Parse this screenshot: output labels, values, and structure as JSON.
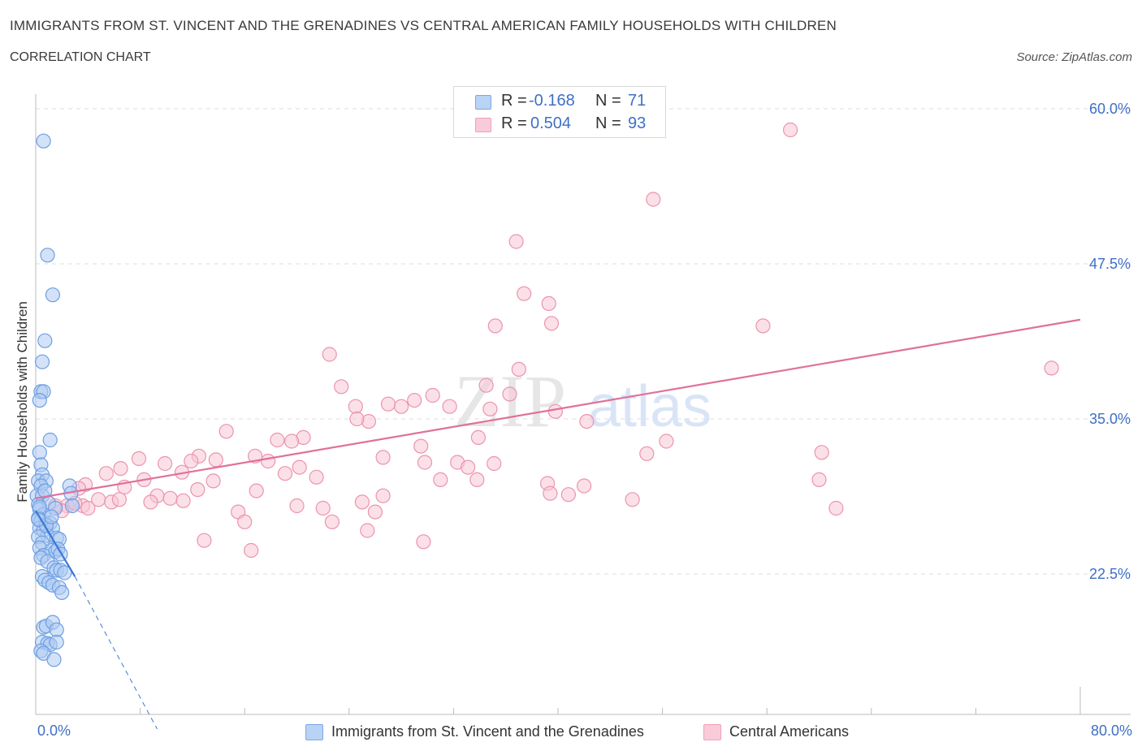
{
  "header": {
    "title": "IMMIGRANTS FROM ST. VINCENT AND THE GRENADINES VS CENTRAL AMERICAN FAMILY HOUSEHOLDS WITH CHILDREN",
    "subtitle": "CORRELATION CHART",
    "source": "Source: ZipAtlas.com"
  },
  "watermark": {
    "zip": "ZIP",
    "atlas": "atlas"
  },
  "stats_legend": {
    "rows": [
      {
        "r_label": "R =",
        "r_value": "-0.168",
        "n_label": "N =",
        "n_value": "71",
        "color": "#7aa8e8"
      },
      {
        "r_label": "R =",
        "r_value": "0.504",
        "n_label": "N =",
        "n_value": "93",
        "color": "#f0a0bb"
      }
    ]
  },
  "colors": {
    "blue_fill": "#aecbf2",
    "blue_stroke": "#6d9fe3",
    "blue_line": "#3a78d4",
    "pink_fill": "#f8c6d5",
    "pink_stroke": "#ec93ae",
    "pink_line": "#e0709a",
    "axis_label": "#3f6fc7",
    "grid": "#dddddd"
  },
  "chart_data": {
    "type": "scatter",
    "xlabel": "",
    "ylabel": "Family Households with Children",
    "xlim": [
      0,
      80
    ],
    "ylim": [
      10,
      62
    ],
    "x_tick_labels": [
      "0.0%",
      "80.0%"
    ],
    "y_ticks": [
      22.5,
      35.0,
      47.5,
      60.0
    ],
    "y_tick_labels": [
      "22.5%",
      "35.0%",
      "47.5%",
      "60.0%"
    ],
    "grid": "horizontal-dashed",
    "legend_placement": "bottom-center",
    "series": [
      {
        "name": "Immigrants from St. Vincent and the Grenadines",
        "color": "#aecbf2",
        "trend": {
          "solid": [
            [
              0,
              27.6
            ],
            [
              3.0,
              22.3
            ]
          ],
          "dashed": [
            [
              3.0,
              22.3
            ],
            [
              9.3,
              10.0
            ]
          ]
        },
        "points": [
          [
            0.6,
            57.4
          ],
          [
            0.9,
            48.2
          ],
          [
            1.3,
            45.0
          ],
          [
            0.7,
            41.3
          ],
          [
            0.5,
            39.6
          ],
          [
            0.4,
            37.2
          ],
          [
            0.6,
            37.2
          ],
          [
            0.3,
            36.5
          ],
          [
            1.1,
            33.3
          ],
          [
            0.3,
            32.3
          ],
          [
            0.4,
            31.3
          ],
          [
            0.5,
            30.5
          ],
          [
            0.2,
            30.0
          ],
          [
            0.8,
            30.0
          ],
          [
            0.4,
            29.6
          ],
          [
            2.6,
            29.6
          ],
          [
            0.1,
            28.8
          ],
          [
            0.5,
            28.8
          ],
          [
            2.7,
            29.0
          ],
          [
            0.2,
            28.1
          ],
          [
            1.0,
            28.2
          ],
          [
            0.3,
            27.7
          ],
          [
            0.6,
            27.3
          ],
          [
            1.5,
            27.8
          ],
          [
            2.8,
            28.0
          ],
          [
            0.2,
            27.0
          ],
          [
            0.4,
            26.8
          ],
          [
            0.8,
            26.5
          ],
          [
            1.1,
            26.6
          ],
          [
            0.3,
            26.2
          ],
          [
            0.6,
            26.0
          ],
          [
            1.3,
            26.2
          ],
          [
            0.9,
            25.6
          ],
          [
            0.2,
            25.5
          ],
          [
            1.6,
            25.4
          ],
          [
            1.8,
            25.3
          ],
          [
            0.5,
            25.0
          ],
          [
            0.3,
            24.6
          ],
          [
            1.2,
            24.4
          ],
          [
            1.5,
            24.3
          ],
          [
            1.7,
            24.5
          ],
          [
            0.6,
            24.0
          ],
          [
            1.9,
            24.1
          ],
          [
            0.4,
            23.8
          ],
          [
            0.9,
            23.5
          ],
          [
            1.4,
            23.0
          ],
          [
            1.6,
            22.8
          ],
          [
            1.9,
            22.8
          ],
          [
            2.2,
            22.6
          ],
          [
            0.5,
            22.3
          ],
          [
            0.7,
            22.0
          ],
          [
            1.0,
            21.8
          ],
          [
            1.3,
            21.6
          ],
          [
            1.8,
            21.4
          ],
          [
            2.0,
            21.0
          ],
          [
            0.6,
            18.2
          ],
          [
            0.8,
            18.3
          ],
          [
            1.3,
            18.6
          ],
          [
            1.6,
            18.0
          ],
          [
            0.5,
            17.0
          ],
          [
            0.9,
            16.9
          ],
          [
            1.1,
            16.8
          ],
          [
            1.6,
            17.0
          ],
          [
            0.4,
            16.3
          ],
          [
            0.6,
            16.1
          ],
          [
            1.4,
            15.6
          ],
          [
            0.8,
            26.4
          ],
          [
            1.2,
            27.1
          ],
          [
            0.3,
            27.9
          ],
          [
            0.7,
            29.2
          ],
          [
            0.2,
            26.9
          ]
        ]
      },
      {
        "name": "Central Americans",
        "color": "#f8c6d5",
        "trend": {
          "solid": [
            [
              0,
              28.6
            ],
            [
              80,
              43.0
            ]
          ]
        },
        "points": [
          [
            57.8,
            58.3
          ],
          [
            47.3,
            52.7
          ],
          [
            36.8,
            49.3
          ],
          [
            37.4,
            45.1
          ],
          [
            39.3,
            44.3
          ],
          [
            39.5,
            42.7
          ],
          [
            35.2,
            42.5
          ],
          [
            55.7,
            42.5
          ],
          [
            77.8,
            39.1
          ],
          [
            37.0,
            39.0
          ],
          [
            22.5,
            40.2
          ],
          [
            23.4,
            37.6
          ],
          [
            34.5,
            37.7
          ],
          [
            36.3,
            37.0
          ],
          [
            30.4,
            36.9
          ],
          [
            29.0,
            36.5
          ],
          [
            27.0,
            36.2
          ],
          [
            24.5,
            36.0
          ],
          [
            28.0,
            36.0
          ],
          [
            31.7,
            36.0
          ],
          [
            34.8,
            35.8
          ],
          [
            39.8,
            35.6
          ],
          [
            42.2,
            34.8
          ],
          [
            25.5,
            34.8
          ],
          [
            24.6,
            35.0
          ],
          [
            14.6,
            34.0
          ],
          [
            20.5,
            33.5
          ],
          [
            18.5,
            33.3
          ],
          [
            19.6,
            33.2
          ],
          [
            33.9,
            33.5
          ],
          [
            29.5,
            32.8
          ],
          [
            48.3,
            33.2
          ],
          [
            46.8,
            32.2
          ],
          [
            60.2,
            32.3
          ],
          [
            16.8,
            32.0
          ],
          [
            12.5,
            32.0
          ],
          [
            11.9,
            31.6
          ],
          [
            13.8,
            31.7
          ],
          [
            17.8,
            31.6
          ],
          [
            7.9,
            31.8
          ],
          [
            9.9,
            31.4
          ],
          [
            26.6,
            31.9
          ],
          [
            29.8,
            31.5
          ],
          [
            32.3,
            31.5
          ],
          [
            35.1,
            31.4
          ],
          [
            6.5,
            31.0
          ],
          [
            20.2,
            31.1
          ],
          [
            33.1,
            31.1
          ],
          [
            5.4,
            30.6
          ],
          [
            11.2,
            30.7
          ],
          [
            19.1,
            30.6
          ],
          [
            21.5,
            30.3
          ],
          [
            8.3,
            30.1
          ],
          [
            13.6,
            30.0
          ],
          [
            31.0,
            30.1
          ],
          [
            33.8,
            30.1
          ],
          [
            39.2,
            29.8
          ],
          [
            3.8,
            29.7
          ],
          [
            6.8,
            29.5
          ],
          [
            12.4,
            29.3
          ],
          [
            16.9,
            29.2
          ],
          [
            39.4,
            29.0
          ],
          [
            26.6,
            28.8
          ],
          [
            9.3,
            28.8
          ],
          [
            10.3,
            28.6
          ],
          [
            42.0,
            29.6
          ],
          [
            60.0,
            30.1
          ],
          [
            3.3,
            29.4
          ],
          [
            4.8,
            28.5
          ],
          [
            5.8,
            28.3
          ],
          [
            6.4,
            28.5
          ],
          [
            11.3,
            28.4
          ],
          [
            8.8,
            28.3
          ],
          [
            25.0,
            28.3
          ],
          [
            2.4,
            28.0
          ],
          [
            3.6,
            28.0
          ],
          [
            4.0,
            27.8
          ],
          [
            20.0,
            28.0
          ],
          [
            22.0,
            27.8
          ],
          [
            45.7,
            28.5
          ],
          [
            40.8,
            28.9
          ],
          [
            61.3,
            27.8
          ],
          [
            2.0,
            27.6
          ],
          [
            15.5,
            27.5
          ],
          [
            26.0,
            27.5
          ],
          [
            22.7,
            26.7
          ],
          [
            16.0,
            26.7
          ],
          [
            25.4,
            26.0
          ],
          [
            12.9,
            25.2
          ],
          [
            29.7,
            25.1
          ],
          [
            16.5,
            24.4
          ],
          [
            3.0,
            28.2
          ],
          [
            1.5,
            28.0
          ]
        ]
      }
    ]
  },
  "bottom_legend": {
    "items": [
      {
        "label": "Immigrants from St. Vincent and the Grenadines"
      },
      {
        "label": "Central Americans"
      }
    ]
  }
}
